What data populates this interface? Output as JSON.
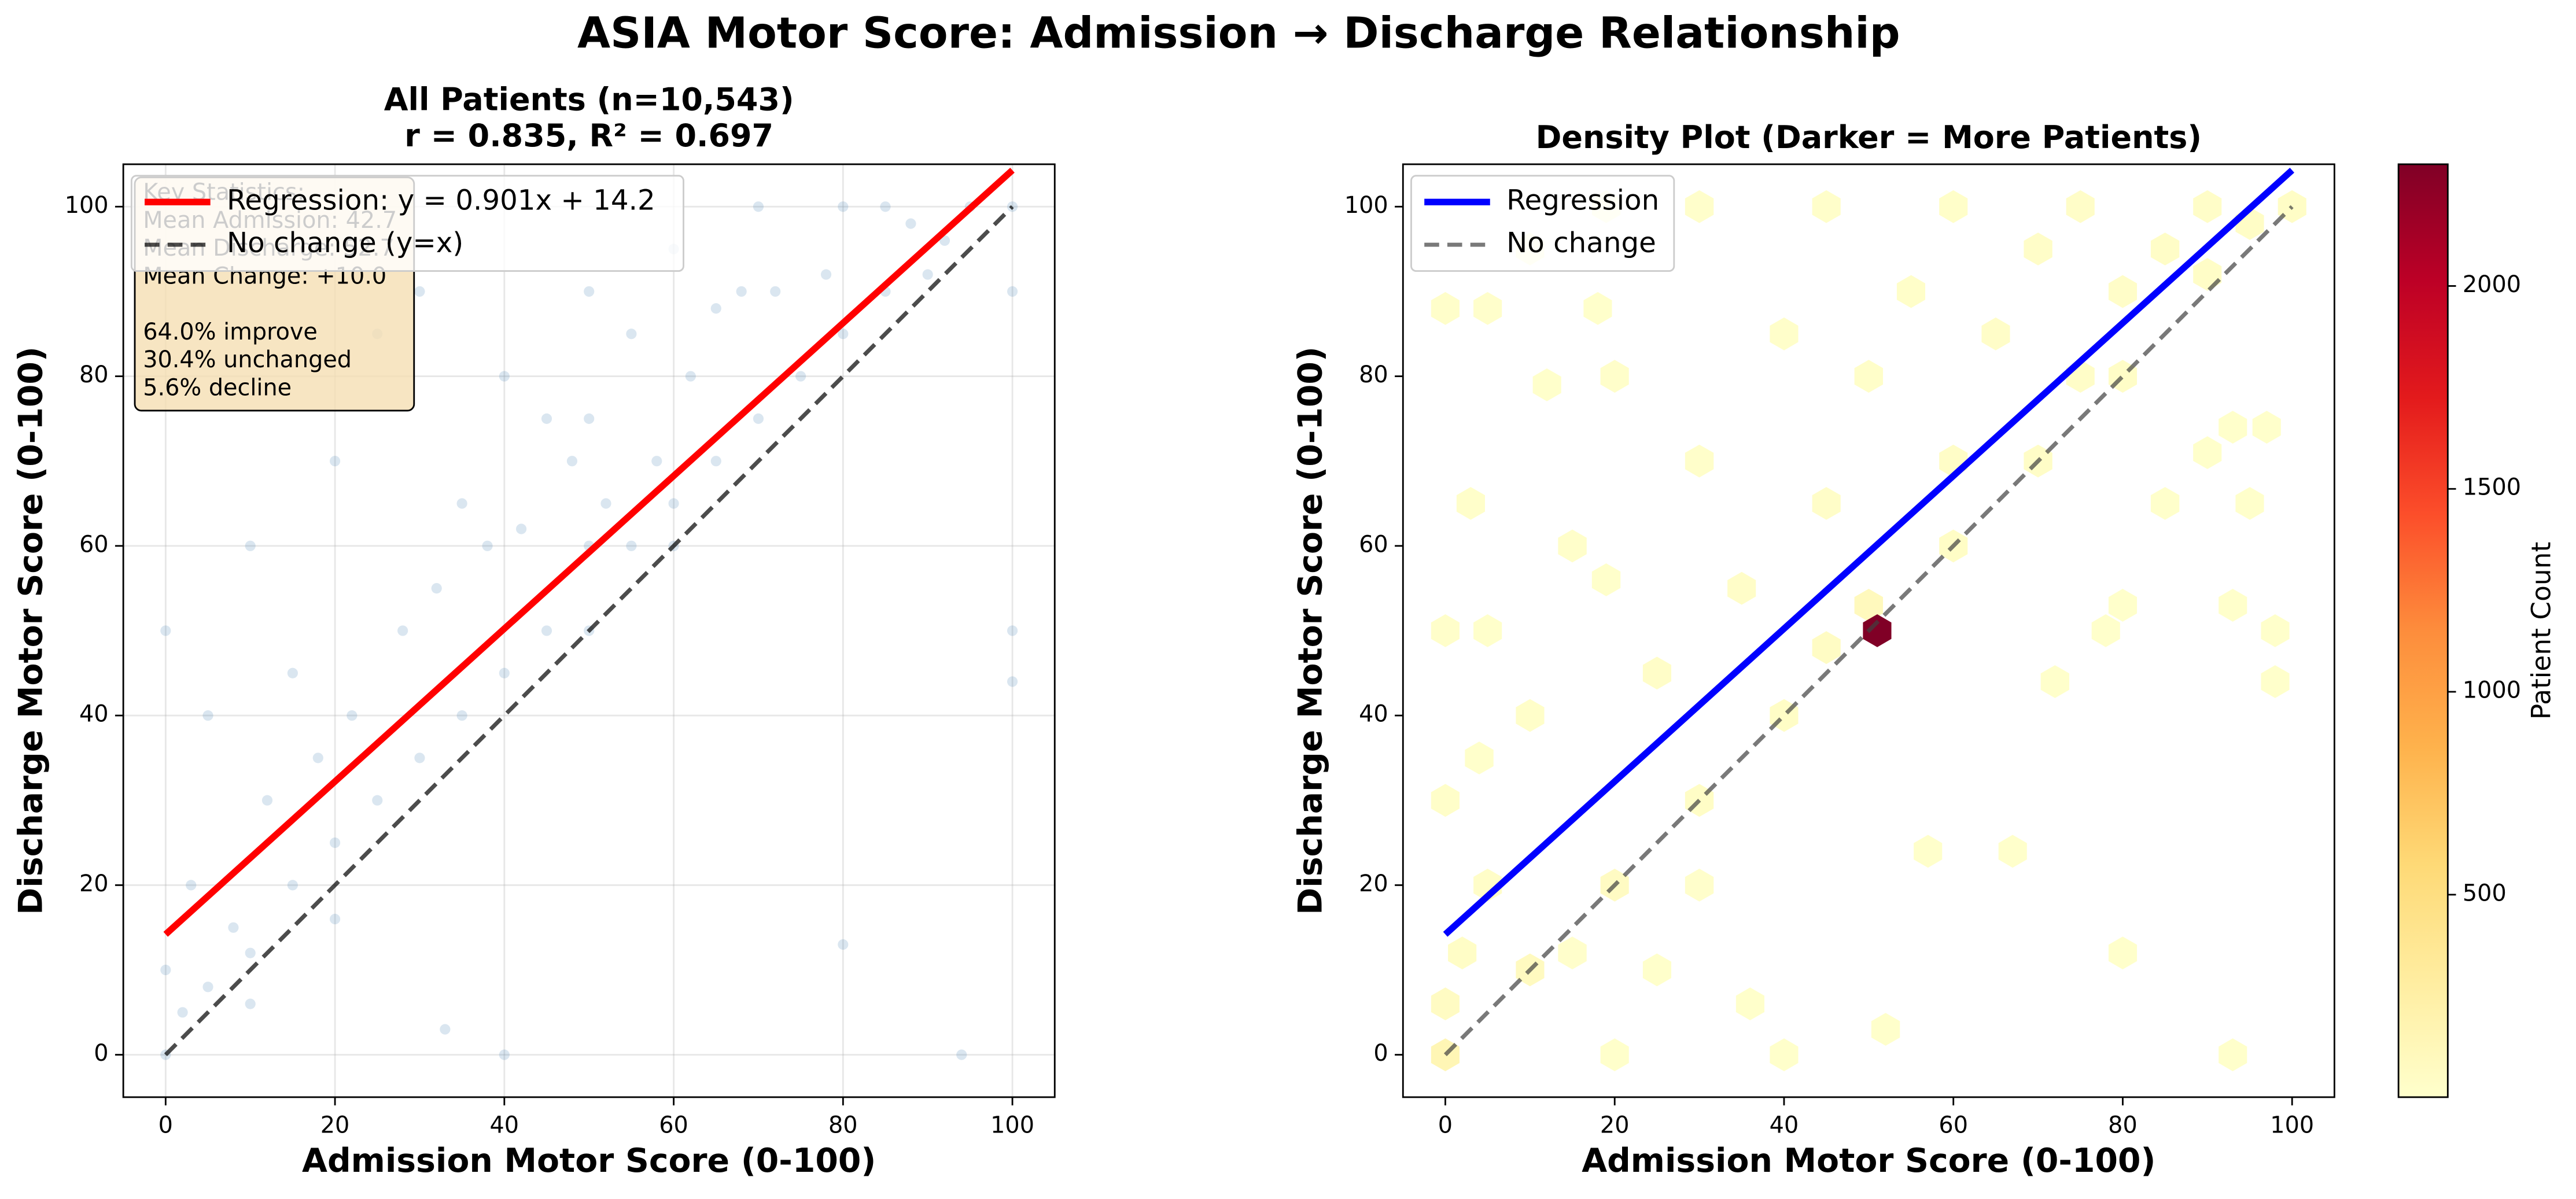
{
  "title": "ASIA Motor Score: Admission → Discharge Relationship",
  "chart_data": [
    {
      "type": "scatter",
      "title": [
        "All Patients (n=10,543)",
        "r = 0.835, R² = 0.697"
      ],
      "xlabel": "Admission Motor Score (0-100)",
      "ylabel": "Discharge Motor Score (0-100)",
      "xlim": [
        -5,
        105
      ],
      "ylim": [
        -5,
        105
      ],
      "xticks": [
        0,
        20,
        40,
        60,
        80,
        100
      ],
      "yticks": [
        0,
        20,
        40,
        60,
        80,
        100
      ],
      "grid": true,
      "legend": "upper left",
      "color": "#4682b4",
      "alpha": 0.2,
      "x": [
        0,
        0,
        0,
        2,
        3,
        5,
        5,
        8,
        10,
        10,
        12,
        15,
        15,
        18,
        20,
        20,
        22,
        25,
        25,
        28,
        30,
        30,
        32,
        35,
        35,
        38,
        40,
        40,
        42,
        45,
        45,
        48,
        50,
        50,
        50,
        50,
        52,
        55,
        55,
        58,
        60,
        60,
        62,
        65,
        65,
        68,
        70,
        70,
        72,
        75,
        78,
        80,
        80,
        85,
        85,
        88,
        90,
        92,
        95,
        100,
        100,
        100,
        10,
        20,
        40,
        60,
        80,
        94,
        100,
        33
      ],
      "values": [
        0,
        10,
        50,
        5,
        20,
        8,
        40,
        15,
        12,
        60,
        30,
        20,
        45,
        35,
        25,
        70,
        40,
        30,
        85,
        50,
        35,
        90,
        55,
        40,
        65,
        60,
        45,
        80,
        62,
        50,
        75,
        70,
        50,
        60,
        75,
        90,
        65,
        60,
        85,
        70,
        65,
        95,
        80,
        70,
        88,
        90,
        75,
        100,
        90,
        80,
        92,
        85,
        100,
        90,
        100,
        98,
        92,
        96,
        100,
        100,
        90,
        50,
        6,
        16,
        0,
        60,
        13,
        0,
        44,
        3
      ],
      "series": [
        {
          "name": "Regression: y = 0.901x + 14.2",
          "color": "#ff0000",
          "linestyle": "solid",
          "x": [
            0,
            100
          ],
          "values": [
            14.2,
            104.3
          ]
        },
        {
          "name": "No change (y=x)",
          "color": "#000000",
          "linestyle": "dashed",
          "x": [
            0,
            100
          ],
          "values": [
            0,
            100
          ]
        }
      ],
      "annotation": [
        "Key Statistics:",
        "Mean Admission: 42.7",
        "Mean Discharge: 52.7",
        "Mean Change: +10.0",
        "64.0% improve",
        "30.4% unchanged",
        "5.6% decline"
      ]
    },
    {
      "type": "hexbin",
      "title": [
        "Density Plot (Darker = More Patients)"
      ],
      "xlabel": "Admission Motor Score (0-100)",
      "ylabel": "Discharge Motor Score (0-100)",
      "xlim": [
        -5,
        105
      ],
      "ylim": [
        -5,
        105
      ],
      "xticks": [
        0,
        20,
        40,
        60,
        80,
        100
      ],
      "yticks": [
        0,
        20,
        40,
        60,
        80,
        100
      ],
      "grid": false,
      "legend": "upper left",
      "colormap": "YlOrRd",
      "x": [
        0,
        51,
        0,
        2,
        5,
        0,
        0,
        3,
        0,
        5,
        10,
        19,
        30,
        45,
        60,
        75,
        90,
        100,
        10,
        15,
        20,
        25,
        30,
        35,
        40,
        45,
        50,
        55,
        60,
        65,
        70,
        75,
        80,
        85,
        90,
        95,
        12,
        18,
        5,
        19,
        4,
        40,
        52,
        80,
        93,
        57,
        67,
        72,
        98,
        98,
        93,
        78,
        80,
        85,
        95,
        90,
        93,
        97,
        20,
        10,
        30,
        40,
        50,
        60,
        70,
        80,
        45,
        36,
        20,
        15,
        25,
        30
      ],
      "values": [
        0,
        50,
        6,
        12,
        20,
        30,
        50,
        65,
        88,
        88,
        95,
        100,
        100,
        100,
        100,
        100,
        100,
        100,
        40,
        60,
        80,
        45,
        70,
        55,
        85,
        65,
        80,
        90,
        70,
        85,
        95,
        80,
        90,
        95,
        92,
        98,
        79,
        88,
        50,
        56,
        35,
        0,
        3,
        12,
        0,
        24,
        24,
        44,
        44,
        50,
        53,
        50,
        53,
        65,
        65,
        71,
        74,
        74,
        20,
        10,
        30,
        40,
        53,
        60,
        70,
        80,
        48,
        6,
        0,
        12,
        10,
        20
      ],
      "counts": [
        150,
        2300,
        60,
        40,
        30,
        20,
        15,
        15,
        12,
        10,
        10,
        10,
        10,
        15,
        20,
        25,
        30,
        40,
        20,
        15,
        12,
        25,
        15,
        30,
        15,
        30,
        20,
        20,
        35,
        25,
        25,
        30,
        30,
        35,
        35,
        40,
        8,
        8,
        8,
        8,
        8,
        5,
        5,
        5,
        5,
        5,
        5,
        5,
        5,
        5,
        5,
        5,
        5,
        5,
        5,
        5,
        5,
        5,
        60,
        80,
        40,
        40,
        100,
        40,
        35,
        35,
        50,
        5,
        5,
        10,
        8,
        10
      ],
      "colorbar": {
        "label": "Patient Count",
        "lim": [
          1,
          2300
        ],
        "ticks": [
          500,
          1000,
          1500,
          2000
        ]
      },
      "series": [
        {
          "name": "Regression",
          "color": "#0000ff",
          "linestyle": "solid",
          "x": [
            0,
            100
          ],
          "values": [
            14.2,
            104.3
          ]
        },
        {
          "name": "No change",
          "color": "#404040",
          "linestyle": "dashed",
          "x": [
            0,
            100
          ],
          "values": [
            0,
            100
          ]
        }
      ]
    }
  ]
}
